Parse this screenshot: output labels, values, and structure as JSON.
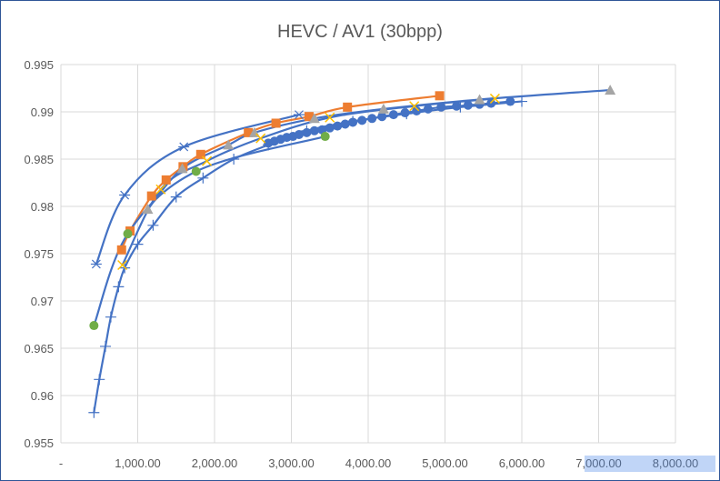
{
  "chart_data": {
    "type": "scatter",
    "title": "HEVC / AV1 (30bpp)",
    "xlabel": "",
    "ylabel": "",
    "xlim": [
      0,
      8000
    ],
    "ylim": [
      0.955,
      0.995
    ],
    "x_ticks": [
      0,
      1000,
      2000,
      3000,
      4000,
      5000,
      6000,
      7000,
      8000
    ],
    "x_tick_labels": [
      "-",
      "1,000.00",
      "2,000.00",
      "3,000.00",
      "4,000.00",
      "5,000.00",
      "6,000.00",
      "7,000.00",
      "8,000.00"
    ],
    "y_ticks": [
      0.955,
      0.96,
      0.965,
      0.97,
      0.975,
      0.98,
      0.985,
      0.99,
      0.995
    ],
    "y_tick_labels": [
      "0.955",
      "0.96",
      "0.965",
      "0.97",
      "0.975",
      "0.98",
      "0.985",
      "0.99",
      "0.995"
    ],
    "grid": true,
    "legend": "none",
    "series": [
      {
        "marker": "plus",
        "color": "#4472c4",
        "line_color": "#4472c4",
        "x": [
          430,
          500,
          580,
          650,
          750,
          830,
          1000,
          1200,
          1500,
          1850,
          2250,
          2700,
          3200,
          3800,
          4500,
          5200,
          6000
        ],
        "y": [
          0.9582,
          0.9617,
          0.9652,
          0.9683,
          0.9715,
          0.9735,
          0.976,
          0.978,
          0.981,
          0.983,
          0.985,
          0.9865,
          0.988,
          0.989,
          0.9898,
          0.9905,
          0.9911
        ]
      },
      {
        "marker": "circle",
        "color": "#4472c4",
        "line_color": "#4472c4",
        "x": [
          2700,
          2780,
          2860,
          2940,
          3020,
          3100,
          3200,
          3300,
          3400,
          3500,
          3600,
          3700,
          3800,
          3920,
          4050,
          4180,
          4330,
          4480,
          4630,
          4780,
          4950,
          5150,
          5300,
          5450,
          5600,
          5850
        ],
        "y": [
          0.9867,
          0.9869,
          0.9871,
          0.9873,
          0.9874,
          0.9876,
          0.9878,
          0.988,
          0.9881,
          0.9883,
          0.9885,
          0.9887,
          0.9889,
          0.9891,
          0.9893,
          0.9895,
          0.9897,
          0.9899,
          0.9901,
          0.9903,
          0.9905,
          0.9906,
          0.9907,
          0.9908,
          0.9909,
          0.9911
        ]
      },
      {
        "marker": "asterisk",
        "color": "#4472c4",
        "line_color": "#4472c4",
        "x": [
          460,
          830,
          1600,
          3100
        ],
        "y": [
          0.9739,
          0.9812,
          0.9863,
          0.9897
        ]
      },
      {
        "marker": "square",
        "color": "#ed7d31",
        "line_color": "#ed7d31",
        "x": [
          790,
          900,
          1180,
          1370,
          1590,
          1820,
          2440,
          2800,
          3230,
          3730,
          4930
        ],
        "y": [
          0.9754,
          0.9774,
          0.9811,
          0.9828,
          0.9842,
          0.9855,
          0.9878,
          0.9888,
          0.9895,
          0.9905,
          0.9917
        ]
      },
      {
        "marker": "triangle",
        "color": "#a5a5a5",
        "line_color": "#4472c4",
        "x": [
          1130,
          1580,
          2180,
          2520,
          3300,
          4200,
          5450,
          7150
        ],
        "y": [
          0.9797,
          0.984,
          0.9865,
          0.9878,
          0.9893,
          0.9903,
          0.9913,
          0.9923
        ]
      },
      {
        "marker": "x",
        "color": "#ffc000",
        "line_color": "#4472c4",
        "x": [
          800,
          1300,
          1900,
          2600,
          3500,
          4600,
          5650
        ],
        "y": [
          0.9738,
          0.9818,
          0.9848,
          0.9872,
          0.9894,
          0.9906,
          0.9914
        ]
      },
      {
        "marker": "circle",
        "color": "#70ad47",
        "line_color": "#4472c4",
        "x": [
          430,
          870,
          1760,
          3440
        ],
        "y": [
          0.9674,
          0.9771,
          0.9837,
          0.9874
        ]
      }
    ]
  }
}
